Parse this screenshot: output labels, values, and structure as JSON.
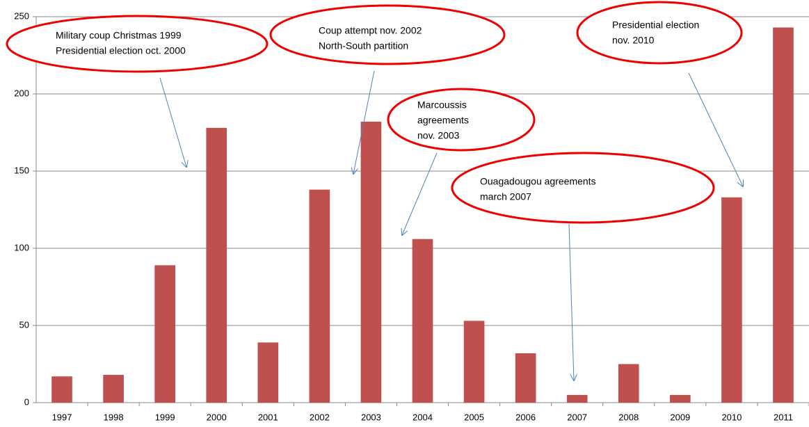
{
  "chart_data": {
    "type": "bar",
    "categories": [
      "1997",
      "1998",
      "1999",
      "2000",
      "2001",
      "2002",
      "2003",
      "2004",
      "2005",
      "2006",
      "2007",
      "2008",
      "2009",
      "2010",
      "2011"
    ],
    "values": [
      17,
      18,
      89,
      178,
      39,
      138,
      182,
      106,
      53,
      32,
      5,
      25,
      5,
      133,
      243
    ],
    "color": "#c0504d",
    "ylim": [
      0,
      250
    ],
    "yticks": [
      0,
      50,
      100,
      150,
      200,
      250
    ],
    "grid": true,
    "annotations": [
      {
        "lines": [
          "Military coup Christmas 1999",
          "Presidential election  oct. 2000"
        ]
      },
      {
        "lines": [
          "Coup attempt nov. 2002",
          "North-South partition"
        ]
      },
      {
        "lines": [
          "Marcoussis",
          "agreements",
          "nov. 2003"
        ]
      },
      {
        "lines": [
          "Ouagadougou agreements",
          "march 2007"
        ]
      },
      {
        "lines": [
          "Presidential election",
          "nov. 2010"
        ]
      }
    ]
  }
}
